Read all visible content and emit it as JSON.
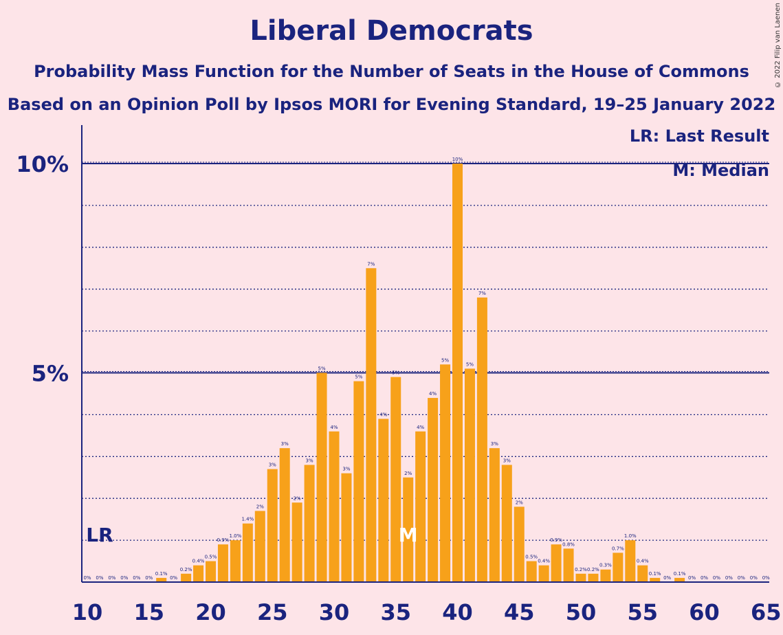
{
  "title": "Liberal Democrats",
  "subtitle": "Probability Mass Function for the Number of Seats in the House of Commons",
  "subtitle2": "Based on an Opinion Poll by Ipsos MORI for Evening Standard, 19–25 January 2022",
  "copyright": "© 2022 Filip van Laenen",
  "legend": {
    "lr": "LR: Last Result",
    "m": "M: Median"
  },
  "colors": {
    "background": "#fde4e8",
    "bar": "#f7a11a",
    "text": "#1a237e"
  },
  "chart_data": {
    "type": "bar",
    "x": [
      10,
      11,
      12,
      13,
      14,
      15,
      16,
      17,
      18,
      19,
      20,
      21,
      22,
      23,
      24,
      25,
      26,
      27,
      28,
      29,
      30,
      31,
      32,
      33,
      34,
      35,
      36,
      37,
      38,
      39,
      40,
      41,
      42,
      43,
      44,
      45,
      46,
      47,
      48,
      49,
      50,
      51,
      52,
      53,
      54,
      55,
      56,
      57,
      58,
      59,
      60,
      61,
      62,
      63,
      64,
      65
    ],
    "values": [
      0,
      0,
      0,
      0,
      0,
      0,
      0.1,
      0,
      0.2,
      0.4,
      0.5,
      0.9,
      1.0,
      1.4,
      1.7,
      2.7,
      3.2,
      1.9,
      2.8,
      5.0,
      3.6,
      2.6,
      4.8,
      7.5,
      3.9,
      4.9,
      2.5,
      3.6,
      4.4,
      5.2,
      10.0,
      5.1,
      6.8,
      3.2,
      2.8,
      1.8,
      0.5,
      0.4,
      0.9,
      0.8,
      0.2,
      0.2,
      0.3,
      0.7,
      1.0,
      0.4,
      0.1,
      0.0,
      0.1,
      0,
      0,
      0,
      0,
      0,
      0,
      0
    ],
    "labels": [
      "0%",
      "0%",
      "0%",
      "0%",
      "0%",
      "0%",
      "0.1%",
      "0%",
      "0.2%",
      "0.4%",
      "0.5%",
      "0.9%",
      "1.0%",
      "1.4%",
      "2%",
      "3%",
      "3%",
      "2%",
      "3%",
      "5%",
      "4%",
      "3%",
      "5%",
      "7%",
      "4%",
      "5%",
      "2%",
      "4%",
      "4%",
      "5%",
      "10%",
      "5%",
      "7%",
      "3%",
      "3%",
      "2%",
      "0.5%",
      "0.4%",
      "0.9%",
      "0.8%",
      "0.2%",
      "0.2%",
      "0.3%",
      "0.7%",
      "1.0%",
      "0.4%",
      "0.1%",
      "0%",
      "0.1%",
      "0%",
      "0%",
      "0%",
      "0%",
      "0%",
      "0%",
      "0%"
    ],
    "xlim": [
      10,
      65
    ],
    "ylim": [
      0,
      11
    ],
    "x_ticks": [
      10,
      15,
      20,
      25,
      30,
      35,
      40,
      45,
      50,
      55,
      60,
      65
    ],
    "y_ticks": [
      {
        "value": 5,
        "label": "5%"
      },
      {
        "value": 10,
        "label": "10%"
      }
    ],
    "last_result": {
      "x": 11,
      "label": "LR"
    },
    "median": {
      "x": 36,
      "label": "M"
    }
  }
}
